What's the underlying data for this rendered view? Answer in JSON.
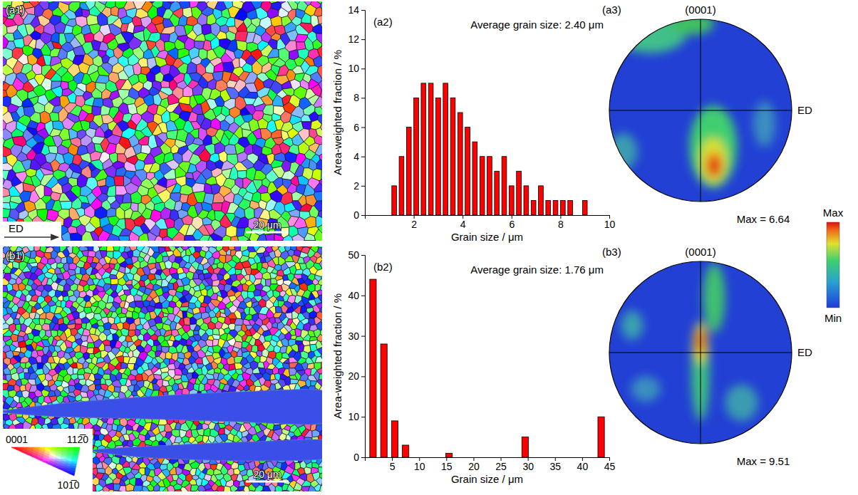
{
  "chart_data": [
    {
      "type": "histogram",
      "label": "(a2)",
      "annotation": "Average grain size: 2.40 μm",
      "x_label": "Grain size / μm",
      "y_label": "Area-weighted fraction / %",
      "bins": [
        1.05,
        1.35,
        1.65,
        1.95,
        2.25,
        2.55,
        2.85,
        3.15,
        3.45,
        3.75,
        4.05,
        4.35,
        4.65,
        4.95,
        5.25,
        5.55,
        5.85,
        6.15,
        6.45,
        6.75,
        7.05,
        7.35,
        7.65,
        7.95,
        8.25,
        8.55,
        8.85,
        9.15
      ],
      "values": [
        2,
        4,
        6,
        8,
        9,
        9,
        8,
        9,
        8,
        7,
        6,
        5,
        4,
        4,
        3,
        4,
        2,
        3,
        2,
        1,
        2,
        1,
        1,
        1,
        1,
        0,
        1
      ],
      "color": "#ff0000",
      "xlim": [
        0,
        10
      ],
      "xticks": [
        2,
        4,
        6,
        8,
        10
      ],
      "ylim": [
        0,
        14
      ],
      "yticks": [
        0,
        2,
        4,
        6,
        8,
        10,
        12,
        14
      ]
    },
    {
      "type": "histogram",
      "label": "(b2)",
      "annotation": "Average grain size: 1.76 μm",
      "x_label": "Grain size / μm",
      "y_label": "Area-weighted fraction / %",
      "bins": [
        0.5,
        2.5,
        4.5,
        6.5,
        8.5,
        10.5,
        12.5,
        14.5,
        16.5,
        18.5,
        20.5,
        22.5,
        24.5,
        26.5,
        28.5,
        30.5,
        32.5,
        34.5,
        36.5,
        38.5,
        40.5,
        42.5,
        44.5
      ],
      "values": [
        44,
        28,
        9,
        3,
        0,
        0,
        0,
        1,
        0,
        0,
        0,
        0,
        0,
        0,
        5,
        0,
        0,
        0,
        0,
        0,
        0,
        10
      ],
      "color": "#ff0000",
      "xlim": [
        0,
        45
      ],
      "xticks": [
        5,
        10,
        15,
        20,
        25,
        30,
        35,
        40,
        45
      ],
      "ylim": [
        0,
        50
      ],
      "yticks": [
        0,
        10,
        20,
        30,
        40,
        50
      ]
    }
  ],
  "maps": [
    {
      "label": "(a1)",
      "scale_bar": "20 μm",
      "direction": "ED"
    },
    {
      "label": "(b1)",
      "scale_bar": "20 μm"
    }
  ],
  "ipf_key": {
    "labels": [
      "0001",
      "112̅0",
      "101̅0"
    ]
  },
  "pole_figures": [
    {
      "label": "(a3)",
      "title": "(0001)",
      "direction": "ED",
      "max_text": "Max = 6.64"
    },
    {
      "label": "(b3)",
      "title": "(0001)",
      "direction": "ED",
      "max_text": "Max = 9.51"
    }
  ],
  "color_bar": {
    "max": "Max",
    "min": "Min"
  }
}
